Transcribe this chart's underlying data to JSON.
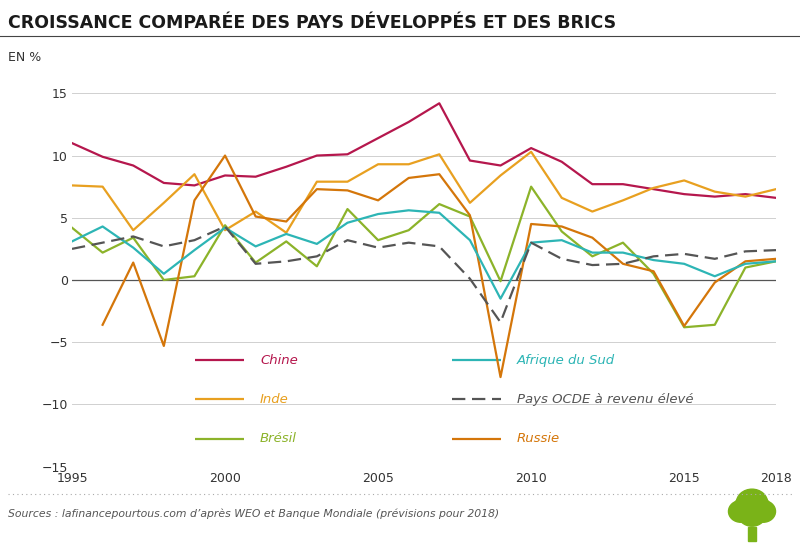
{
  "title": "CROISSANCE COMPARÉE DES PAYS DÉVELOPPÉS ET DES BRICS",
  "ylabel": "EN %",
  "source": "Sources : lafinancepourtous.com d’après WEO et Banque Mondiale (prévisions pour 2018)",
  "years": [
    1995,
    1996,
    1997,
    1998,
    1999,
    2000,
    2001,
    2002,
    2003,
    2004,
    2005,
    2006,
    2007,
    2008,
    2009,
    2010,
    2011,
    2012,
    2013,
    2014,
    2015,
    2016,
    2017,
    2018
  ],
  "chine": [
    11.0,
    9.9,
    9.2,
    7.8,
    7.6,
    8.4,
    8.3,
    9.1,
    10.0,
    10.1,
    11.4,
    12.7,
    14.2,
    9.6,
    9.2,
    10.6,
    9.5,
    7.7,
    7.7,
    7.3,
    6.9,
    6.7,
    6.9,
    6.6
  ],
  "inde": [
    7.6,
    7.5,
    4.0,
    6.2,
    8.5,
    4.0,
    5.5,
    3.8,
    7.9,
    7.9,
    9.3,
    9.3,
    10.1,
    6.2,
    8.4,
    10.3,
    6.6,
    5.5,
    6.4,
    7.4,
    8.0,
    7.1,
    6.7,
    7.3
  ],
  "bresil": [
    4.2,
    2.2,
    3.4,
    0.0,
    0.3,
    4.4,
    1.4,
    3.1,
    1.1,
    5.7,
    3.2,
    4.0,
    6.1,
    5.1,
    -0.1,
    7.5,
    3.9,
    1.9,
    3.0,
    0.5,
    -3.8,
    -3.6,
    1.0,
    1.5
  ],
  "russie": [
    null,
    -3.6,
    1.4,
    -5.3,
    6.4,
    10.0,
    5.1,
    4.7,
    7.3,
    7.2,
    6.4,
    8.2,
    8.5,
    5.2,
    -7.8,
    4.5,
    4.3,
    3.4,
    1.3,
    0.7,
    -3.7,
    -0.2,
    1.5,
    1.7
  ],
  "afrique_du_sud": [
    3.1,
    4.3,
    2.6,
    0.5,
    2.4,
    4.2,
    2.7,
    3.7,
    2.9,
    4.6,
    5.3,
    5.6,
    5.4,
    3.2,
    -1.5,
    3.0,
    3.2,
    2.2,
    2.2,
    1.6,
    1.3,
    0.3,
    1.3,
    1.5
  ],
  "ocde": [
    2.5,
    3.0,
    3.5,
    2.7,
    3.2,
    4.3,
    1.3,
    1.5,
    1.9,
    3.2,
    2.6,
    3.0,
    2.7,
    0.1,
    -3.4,
    3.0,
    1.7,
    1.2,
    1.3,
    1.9,
    2.1,
    1.7,
    2.3,
    2.4
  ],
  "chine_color": "#b5174d",
  "inde_color": "#e8a020",
  "bresil_color": "#8cb32a",
  "russie_color": "#d4760a",
  "afrique_color": "#2db5b5",
  "ocde_color": "#555555",
  "bg_color": "#ffffff",
  "grid_color": "#d0d0d0",
  "ylim": [
    -15,
    15
  ],
  "yticks": [
    -15,
    -10,
    -5,
    0,
    5,
    10,
    15
  ],
  "xticks": [
    1995,
    2000,
    2005,
    2010,
    2015,
    2018
  ],
  "tree_color": "#7ab318",
  "title_line_color": "#444444",
  "dot_line_color": "#aaaaaa"
}
